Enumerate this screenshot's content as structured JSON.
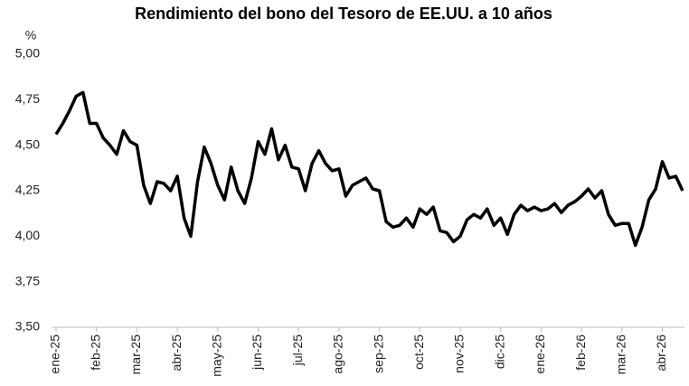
{
  "chart_data": {
    "type": "line",
    "title": "Rendimiento del bono del Tesoro de EE.UU. a 10 años",
    "y_label": "%",
    "categories": [
      "ene-25",
      null,
      null,
      null,
      null,
      null,
      "feb-25",
      null,
      null,
      null,
      null,
      null,
      "mar-25",
      null,
      null,
      null,
      null,
      null,
      "abr-25",
      null,
      null,
      null,
      null,
      null,
      "may-25",
      null,
      null,
      null,
      null,
      null,
      "jun-25",
      null,
      null,
      null,
      null,
      null,
      "jul-25",
      null,
      null,
      null,
      null,
      null,
      "ago-25",
      null,
      null,
      null,
      null,
      null,
      "sep-25",
      null,
      null,
      null,
      null,
      null,
      "oct-25",
      null,
      null,
      null,
      null,
      null,
      "nov-25",
      null,
      null,
      null,
      null,
      null,
      "dic-25",
      null,
      null,
      null,
      null,
      null,
      "ene-26",
      null,
      null,
      null,
      null,
      null,
      "feb-26",
      null,
      null,
      null,
      null,
      null,
      "mar-26",
      null,
      null,
      null,
      null,
      null,
      "abr-26",
      null,
      null,
      null
    ],
    "series": [
      {
        "name": "Rendimiento",
        "color": "#000000",
        "values": [
          4.56,
          4.62,
          4.69,
          4.77,
          4.79,
          4.62,
          4.62,
          4.54,
          4.5,
          4.45,
          4.58,
          4.52,
          4.5,
          4.28,
          4.18,
          4.3,
          4.29,
          4.25,
          4.33,
          4.1,
          4.0,
          4.3,
          4.49,
          4.4,
          4.28,
          4.2,
          4.38,
          4.25,
          4.18,
          4.32,
          4.52,
          4.45,
          4.59,
          4.42,
          4.5,
          4.38,
          4.37,
          4.25,
          4.4,
          4.47,
          4.4,
          4.36,
          4.37,
          4.22,
          4.28,
          4.3,
          4.32,
          4.26,
          4.25,
          4.08,
          4.05,
          4.06,
          4.1,
          4.05,
          4.15,
          4.12,
          4.16,
          4.03,
          4.02,
          3.97,
          4.0,
          4.09,
          4.12,
          4.1,
          4.15,
          4.06,
          4.1,
          4.01,
          4.12,
          4.17,
          4.14,
          4.16,
          4.14,
          4.15,
          4.18,
          4.13,
          4.17,
          4.19,
          4.22,
          4.26,
          4.21,
          4.25,
          4.12,
          4.06,
          4.07,
          4.07,
          3.95,
          4.05,
          4.2,
          4.26,
          4.41,
          4.32,
          4.33,
          4.25
        ]
      }
    ],
    "ylim": [
      3.5,
      5.0
    ],
    "yticks": [
      {
        "value": 3.5,
        "label": "3,50"
      },
      {
        "value": 3.75,
        "label": "3,75"
      },
      {
        "value": 4.0,
        "label": "4,00"
      },
      {
        "value": 4.25,
        "label": "4,25"
      },
      {
        "value": 4.5,
        "label": "4,50"
      },
      {
        "value": 4.75,
        "label": "4,75"
      },
      {
        "value": 5.0,
        "label": "5,00"
      }
    ],
    "grid": false
  }
}
